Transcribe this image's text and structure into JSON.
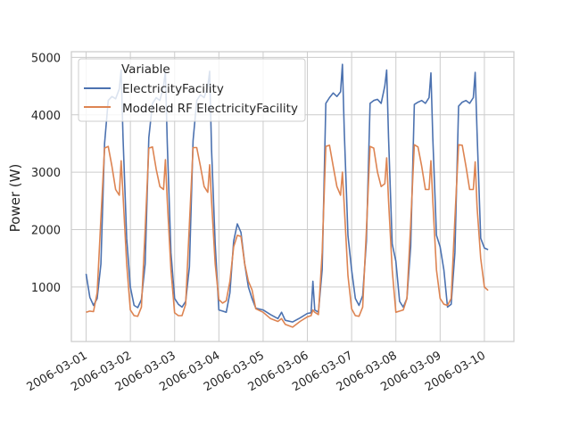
{
  "chart_data": {
    "type": "line",
    "title": "",
    "xlabel": "",
    "ylabel": "Power (W)",
    "xlim": [
      "2006-02-28T16:00",
      "2006-03-10T16:00"
    ],
    "ylim": [
      50,
      5100
    ],
    "x_ticks": [
      "2006-03-01",
      "2006-03-02",
      "2006-03-03",
      "2006-03-04",
      "2006-03-05",
      "2006-03-06",
      "2006-03-07",
      "2006-03-08",
      "2006-03-09",
      "2006-03-10"
    ],
    "y_ticks": [
      1000,
      2000,
      3000,
      4000,
      5000
    ],
    "grid": true,
    "legend": {
      "title": "Variable",
      "position": "top-left"
    },
    "series": [
      {
        "name": "ElectricityFacility",
        "color": "#4c72b0",
        "points": [
          [
            "2006-03-01T00:00",
            1230
          ],
          [
            "2006-03-01T02:00",
            820
          ],
          [
            "2006-03-01T04:00",
            680
          ],
          [
            "2006-03-01T06:00",
            800
          ],
          [
            "2006-03-01T08:00",
            1400
          ],
          [
            "2006-03-01T10:00",
            3500
          ],
          [
            "2006-03-01T12:00",
            4250
          ],
          [
            "2006-03-01T14:00",
            4320
          ],
          [
            "2006-03-01T16:00",
            4280
          ],
          [
            "2006-03-01T18:00",
            4450
          ],
          [
            "2006-03-01T19:00",
            4780
          ],
          [
            "2006-03-01T20:00",
            3600
          ],
          [
            "2006-03-01T22:00",
            1850
          ],
          [
            "2006-03-02T00:00",
            1000
          ],
          [
            "2006-03-02T02:00",
            680
          ],
          [
            "2006-03-02T04:00",
            640
          ],
          [
            "2006-03-02T06:00",
            780
          ],
          [
            "2006-03-02T08:00",
            1400
          ],
          [
            "2006-03-02T10:00",
            3600
          ],
          [
            "2006-03-02T12:00",
            4200
          ],
          [
            "2006-03-02T14:00",
            4300
          ],
          [
            "2006-03-02T16:00",
            4250
          ],
          [
            "2006-03-02T18:00",
            4500
          ],
          [
            "2006-03-02T19:00",
            4750
          ],
          [
            "2006-03-02T20:00",
            3500
          ],
          [
            "2006-03-02T22:00",
            1600
          ],
          [
            "2006-03-03T00:00",
            800
          ],
          [
            "2006-03-03T02:00",
            700
          ],
          [
            "2006-03-03T04:00",
            650
          ],
          [
            "2006-03-03T06:00",
            750
          ],
          [
            "2006-03-03T08:00",
            1350
          ],
          [
            "2006-03-03T10:00",
            3550
          ],
          [
            "2006-03-03T12:00",
            4250
          ],
          [
            "2006-03-03T14:00",
            4350
          ],
          [
            "2006-03-03T16:00",
            4300
          ],
          [
            "2006-03-03T18:00",
            4500
          ],
          [
            "2006-03-03T19:00",
            4760
          ],
          [
            "2006-03-03T20:00",
            3400
          ],
          [
            "2006-03-03T22:00",
            1750
          ],
          [
            "2006-03-04T00:00",
            600
          ],
          [
            "2006-03-04T02:00",
            580
          ],
          [
            "2006-03-04T04:00",
            560
          ],
          [
            "2006-03-04T06:00",
            900
          ],
          [
            "2006-03-04T08:00",
            1800
          ],
          [
            "2006-03-04T10:00",
            2100
          ],
          [
            "2006-03-04T12:00",
            1950
          ],
          [
            "2006-03-04T14:00",
            1400
          ],
          [
            "2006-03-04T16:00",
            1000
          ],
          [
            "2006-03-04T18:00",
            800
          ],
          [
            "2006-03-04T20:00",
            630
          ],
          [
            "2006-03-05T00:00",
            600
          ],
          [
            "2006-03-05T04:00",
            520
          ],
          [
            "2006-03-05T08:00",
            450
          ],
          [
            "2006-03-05T10:00",
            560
          ],
          [
            "2006-03-05T12:00",
            420
          ],
          [
            "2006-03-05T16:00",
            390
          ],
          [
            "2006-03-05T20:00",
            460
          ],
          [
            "2006-03-06T00:00",
            540
          ],
          [
            "2006-03-06T02:00",
            550
          ],
          [
            "2006-03-06T03:00",
            1100
          ],
          [
            "2006-03-06T04:00",
            600
          ],
          [
            "2006-03-06T06:00",
            560
          ],
          [
            "2006-03-06T08:00",
            1300
          ],
          [
            "2006-03-06T10:00",
            4200
          ],
          [
            "2006-03-06T12:00",
            4300
          ],
          [
            "2006-03-06T14:00",
            4380
          ],
          [
            "2006-03-06T16:00",
            4320
          ],
          [
            "2006-03-06T18:00",
            4400
          ],
          [
            "2006-03-06T19:00",
            4880
          ],
          [
            "2006-03-06T20:00",
            3700
          ],
          [
            "2006-03-06T22:00",
            1900
          ],
          [
            "2006-03-07T00:00",
            1300
          ],
          [
            "2006-03-07T02:00",
            800
          ],
          [
            "2006-03-07T04:00",
            680
          ],
          [
            "2006-03-07T06:00",
            850
          ],
          [
            "2006-03-07T08:00",
            1800
          ],
          [
            "2006-03-07T10:00",
            4200
          ],
          [
            "2006-03-07T12:00",
            4250
          ],
          [
            "2006-03-07T14:00",
            4270
          ],
          [
            "2006-03-07T16:00",
            4200
          ],
          [
            "2006-03-07T18:00",
            4500
          ],
          [
            "2006-03-07T19:00",
            4780
          ],
          [
            "2006-03-07T20:00",
            3600
          ],
          [
            "2006-03-07T22:00",
            1750
          ],
          [
            "2006-03-08T00:00",
            1450
          ],
          [
            "2006-03-08T02:00",
            750
          ],
          [
            "2006-03-08T04:00",
            650
          ],
          [
            "2006-03-08T06:00",
            800
          ],
          [
            "2006-03-08T08:00",
            1700
          ],
          [
            "2006-03-08T10:00",
            4180
          ],
          [
            "2006-03-08T12:00",
            4220
          ],
          [
            "2006-03-08T14:00",
            4250
          ],
          [
            "2006-03-08T16:00",
            4200
          ],
          [
            "2006-03-08T18:00",
            4300
          ],
          [
            "2006-03-08T19:00",
            4730
          ],
          [
            "2006-03-08T20:00",
            3600
          ],
          [
            "2006-03-08T22:00",
            1900
          ],
          [
            "2006-03-09T00:00",
            1700
          ],
          [
            "2006-03-09T02:00",
            1300
          ],
          [
            "2006-03-09T04:00",
            650
          ],
          [
            "2006-03-09T06:00",
            700
          ],
          [
            "2006-03-09T08:00",
            1600
          ],
          [
            "2006-03-09T10:00",
            4150
          ],
          [
            "2006-03-09T12:00",
            4220
          ],
          [
            "2006-03-09T14:00",
            4250
          ],
          [
            "2006-03-09T16:00",
            4200
          ],
          [
            "2006-03-09T18:00",
            4300
          ],
          [
            "2006-03-09T19:00",
            4740
          ],
          [
            "2006-03-09T20:00",
            3700
          ],
          [
            "2006-03-09T22:00",
            1850
          ],
          [
            "2006-03-10T00:00",
            1680
          ],
          [
            "2006-03-10T02:00",
            1650
          ]
        ]
      },
      {
        "name": "Modeled RF ElectricityFacility",
        "color": "#dd8452",
        "points": [
          [
            "2006-03-01T00:00",
            560
          ],
          [
            "2006-03-01T02:00",
            580
          ],
          [
            "2006-03-01T04:00",
            570
          ],
          [
            "2006-03-01T06:00",
            900
          ],
          [
            "2006-03-01T08:00",
            2200
          ],
          [
            "2006-03-01T10:00",
            3420
          ],
          [
            "2006-03-01T12:00",
            3450
          ],
          [
            "2006-03-01T14:00",
            3100
          ],
          [
            "2006-03-01T16:00",
            2700
          ],
          [
            "2006-03-01T18:00",
            2600
          ],
          [
            "2006-03-01T19:00",
            3200
          ],
          [
            "2006-03-01T20:00",
            2600
          ],
          [
            "2006-03-01T22:00",
            1400
          ],
          [
            "2006-03-02T00:00",
            600
          ],
          [
            "2006-03-02T02:00",
            500
          ],
          [
            "2006-03-02T04:00",
            490
          ],
          [
            "2006-03-02T06:00",
            650
          ],
          [
            "2006-03-02T08:00",
            2000
          ],
          [
            "2006-03-02T10:00",
            3420
          ],
          [
            "2006-03-02T12:00",
            3440
          ],
          [
            "2006-03-02T14:00",
            3050
          ],
          [
            "2006-03-02T16:00",
            2750
          ],
          [
            "2006-03-02T18:00",
            2700
          ],
          [
            "2006-03-02T19:00",
            3220
          ],
          [
            "2006-03-02T20:00",
            2500
          ],
          [
            "2006-03-02T22:00",
            1300
          ],
          [
            "2006-03-03T00:00",
            550
          ],
          [
            "2006-03-03T02:00",
            500
          ],
          [
            "2006-03-03T04:00",
            500
          ],
          [
            "2006-03-03T06:00",
            700
          ],
          [
            "2006-03-03T08:00",
            2100
          ],
          [
            "2006-03-03T10:00",
            3430
          ],
          [
            "2006-03-03T12:00",
            3430
          ],
          [
            "2006-03-03T14:00",
            3100
          ],
          [
            "2006-03-03T16:00",
            2750
          ],
          [
            "2006-03-03T18:00",
            2650
          ],
          [
            "2006-03-03T19:00",
            3130
          ],
          [
            "2006-03-03T20:00",
            2500
          ],
          [
            "2006-03-03T22:00",
            1400
          ],
          [
            "2006-03-04T00:00",
            780
          ],
          [
            "2006-03-04T02:00",
            720
          ],
          [
            "2006-03-04T04:00",
            760
          ],
          [
            "2006-03-04T06:00",
            1100
          ],
          [
            "2006-03-04T08:00",
            1700
          ],
          [
            "2006-03-04T10:00",
            1900
          ],
          [
            "2006-03-04T12:00",
            1880
          ],
          [
            "2006-03-04T14:00",
            1400
          ],
          [
            "2006-03-04T16:00",
            1100
          ],
          [
            "2006-03-04T18:00",
            950
          ],
          [
            "2006-03-04T20:00",
            620
          ],
          [
            "2006-03-05T00:00",
            560
          ],
          [
            "2006-03-05T04:00",
            450
          ],
          [
            "2006-03-05T08:00",
            400
          ],
          [
            "2006-03-05T10:00",
            450
          ],
          [
            "2006-03-05T12:00",
            350
          ],
          [
            "2006-03-05T16:00",
            300
          ],
          [
            "2006-03-05T20:00",
            400
          ],
          [
            "2006-03-06T00:00",
            480
          ],
          [
            "2006-03-06T02:00",
            500
          ],
          [
            "2006-03-06T03:00",
            600
          ],
          [
            "2006-03-06T04:00",
            560
          ],
          [
            "2006-03-06T06:00",
            520
          ],
          [
            "2006-03-06T08:00",
            1600
          ],
          [
            "2006-03-06T10:00",
            3450
          ],
          [
            "2006-03-06T12:00",
            3470
          ],
          [
            "2006-03-06T14:00",
            3100
          ],
          [
            "2006-03-06T16:00",
            2750
          ],
          [
            "2006-03-06T18:00",
            2600
          ],
          [
            "2006-03-06T19:00",
            3000
          ],
          [
            "2006-03-06T20:00",
            2400
          ],
          [
            "2006-03-06T22:00",
            1200
          ],
          [
            "2006-03-07T00:00",
            620
          ],
          [
            "2006-03-07T02:00",
            500
          ],
          [
            "2006-03-07T04:00",
            490
          ],
          [
            "2006-03-07T06:00",
            650
          ],
          [
            "2006-03-07T08:00",
            2000
          ],
          [
            "2006-03-07T10:00",
            3450
          ],
          [
            "2006-03-07T12:00",
            3420
          ],
          [
            "2006-03-07T14:00",
            3000
          ],
          [
            "2006-03-07T16:00",
            2750
          ],
          [
            "2006-03-07T18:00",
            2800
          ],
          [
            "2006-03-07T19:00",
            3250
          ],
          [
            "2006-03-07T20:00",
            2500
          ],
          [
            "2006-03-07T22:00",
            1300
          ],
          [
            "2006-03-08T00:00",
            560
          ],
          [
            "2006-03-08T02:00",
            580
          ],
          [
            "2006-03-08T04:00",
            600
          ],
          [
            "2006-03-08T06:00",
            800
          ],
          [
            "2006-03-08T08:00",
            2100
          ],
          [
            "2006-03-08T10:00",
            3480
          ],
          [
            "2006-03-08T12:00",
            3440
          ],
          [
            "2006-03-08T14:00",
            3100
          ],
          [
            "2006-03-08T16:00",
            2700
          ],
          [
            "2006-03-08T18:00",
            2700
          ],
          [
            "2006-03-08T19:00",
            3200
          ],
          [
            "2006-03-08T20:00",
            2500
          ],
          [
            "2006-03-08T22:00",
            1300
          ],
          [
            "2006-03-09T00:00",
            800
          ],
          [
            "2006-03-09T02:00",
            700
          ],
          [
            "2006-03-09T04:00",
            680
          ],
          [
            "2006-03-09T06:00",
            800
          ],
          [
            "2006-03-09T08:00",
            2200
          ],
          [
            "2006-03-09T10:00",
            3480
          ],
          [
            "2006-03-09T12:00",
            3470
          ],
          [
            "2006-03-09T14:00",
            3100
          ],
          [
            "2006-03-09T16:00",
            2700
          ],
          [
            "2006-03-09T18:00",
            2700
          ],
          [
            "2006-03-09T19:00",
            3180
          ],
          [
            "2006-03-09T20:00",
            2400
          ],
          [
            "2006-03-09T22:00",
            1500
          ],
          [
            "2006-03-10T00:00",
            1000
          ],
          [
            "2006-03-10T02:00",
            940
          ]
        ]
      }
    ]
  }
}
